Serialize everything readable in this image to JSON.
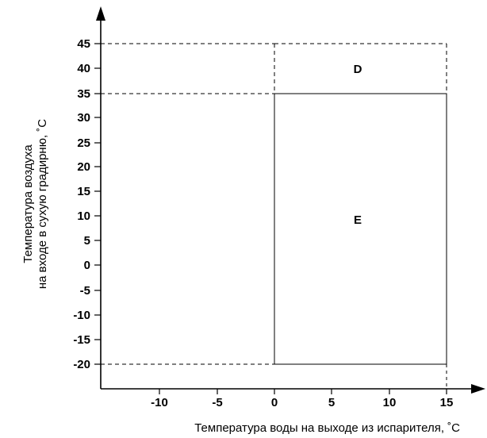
{
  "diagram": {
    "x_axis_label": "Температура воды на выходе из испарителя, ˚C",
    "y_axis_label_line1": "Температура воздуха",
    "y_axis_label_line2": "на входе в сухую градирню, ˚C",
    "x_ticks": [
      "-10",
      "-5",
      "0",
      "5",
      "10",
      "15"
    ],
    "y_ticks": [
      "45",
      "40",
      "35",
      "30",
      "25",
      "20",
      "15",
      "10",
      "5",
      "0",
      "-5",
      "-10",
      "-15",
      "-20"
    ],
    "zones": [
      {
        "label": "D",
        "x_range": [
          0,
          15
        ],
        "y_range": [
          35,
          45
        ],
        "border": "dashed"
      },
      {
        "label": "E",
        "x_range": [
          0,
          15
        ],
        "y_range": [
          -20,
          35
        ],
        "border": "solid"
      }
    ],
    "reference_lines": [
      {
        "axis": "y",
        "value": 45
      },
      {
        "axis": "y",
        "value": 35
      },
      {
        "axis": "y",
        "value": -20
      },
      {
        "axis": "x",
        "value": 15
      }
    ],
    "colors": {
      "ink": "#000000",
      "background": "#ffffff"
    }
  }
}
